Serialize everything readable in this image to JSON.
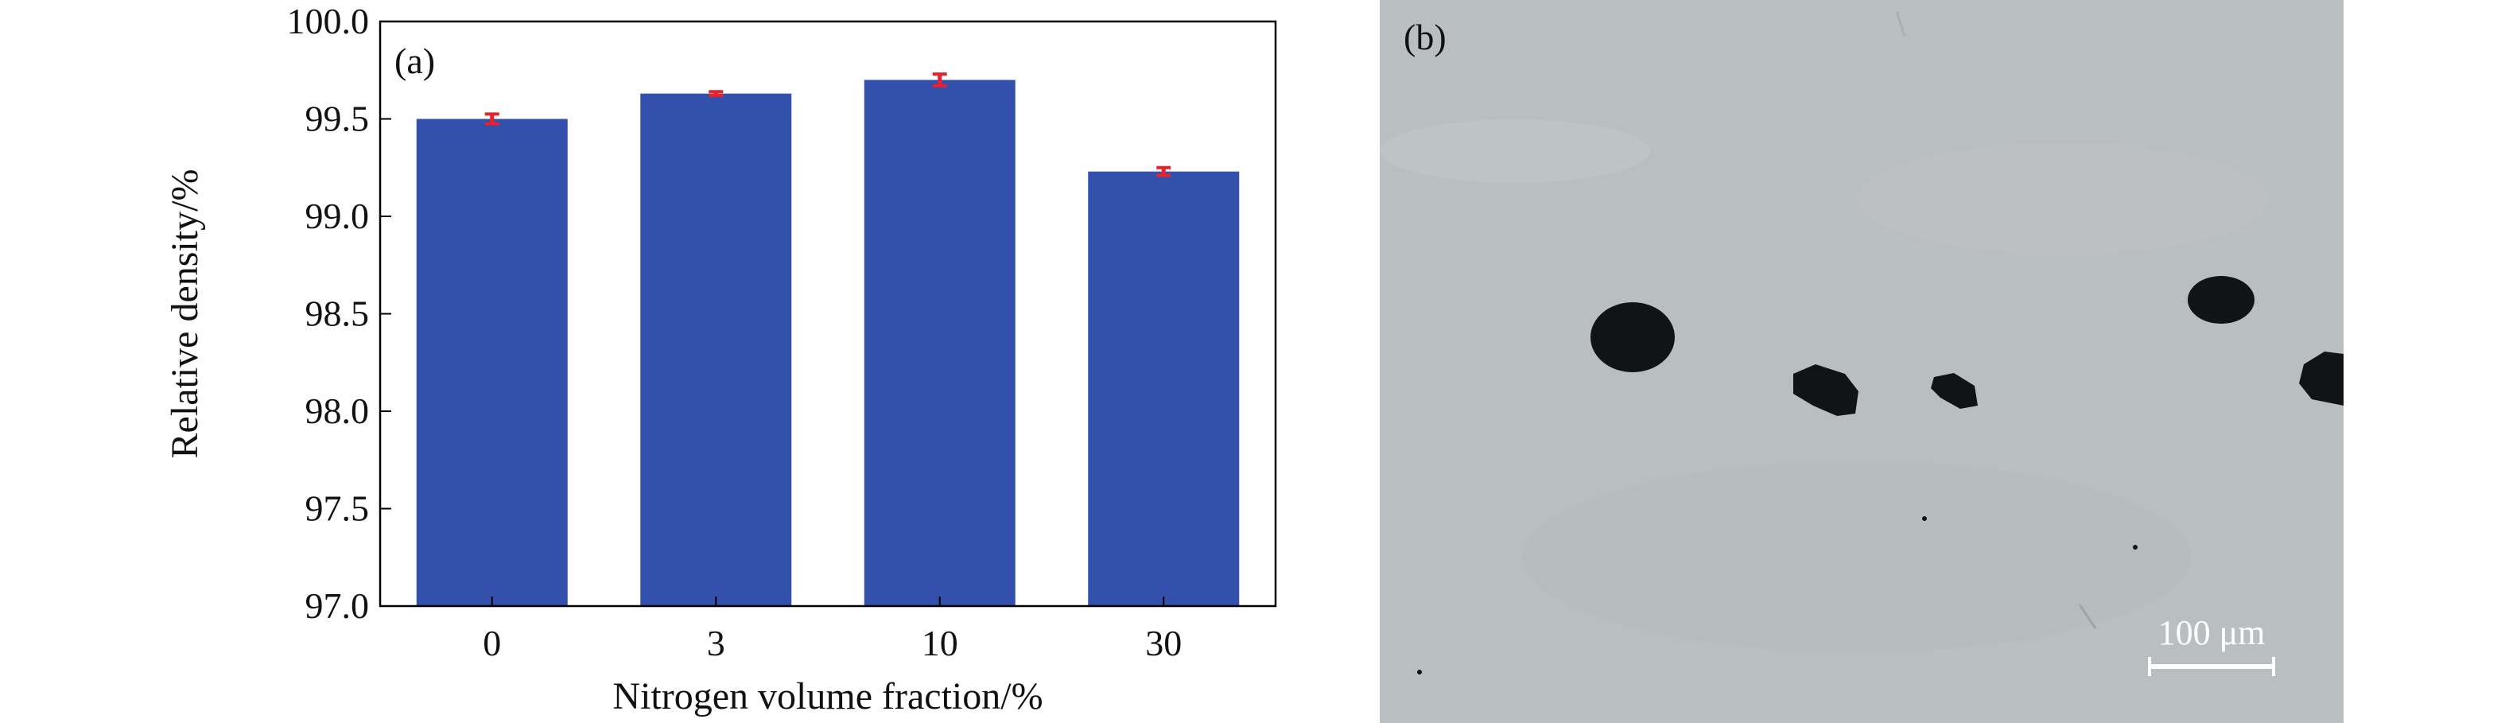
{
  "panels": {
    "a_label": "(a)",
    "b_label": "(b)"
  },
  "micrograph": {
    "scale_bar_label": "100 μm",
    "background_color": "#b9bec0",
    "pore_color": "#111414"
  },
  "chart_data": {
    "type": "bar",
    "categories": [
      "0",
      "3",
      "10",
      "30"
    ],
    "values": [
      99.5,
      99.63,
      99.7,
      99.23
    ],
    "errors": [
      0.025,
      0.01,
      0.03,
      0.02
    ],
    "title": "",
    "xlabel": "Nitrogen volume fraction/%",
    "ylabel": "Relative density/%",
    "ylim": [
      97.0,
      100.0
    ],
    "yticks": [
      "97.0",
      "97.5",
      "98.0",
      "98.5",
      "99.0",
      "99.5",
      "100.0"
    ],
    "grid": false,
    "bar_color": "#3450ad",
    "error_bar_color": "#e8212b"
  }
}
